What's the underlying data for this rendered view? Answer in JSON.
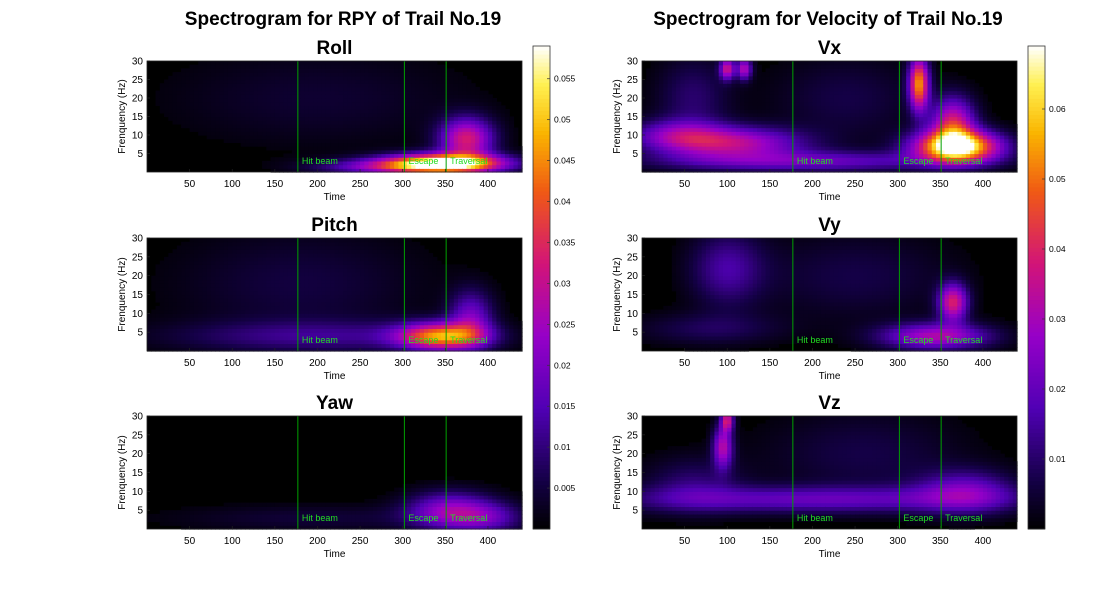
{
  "figure_titles": {
    "left": "Spectrogram for RPY of Trail No.19",
    "right": "Spectrogram for Velocity of Trail No.19"
  },
  "events": [
    {
      "label": "Hit beam",
      "time": 177
    },
    {
      "label": "Escape",
      "time": 302
    },
    {
      "label": "Traversal",
      "time": 351
    }
  ],
  "colors": {
    "colormap": "hot-purple (black-purple-magenta-orange-yellow-white)",
    "event_line": "#00a000",
    "event_label": "#22dd22"
  },
  "chart_data": [
    {
      "type": "heatmap",
      "title": "Roll",
      "xlabel": "Time",
      "ylabel": "Frenquency (Hz)",
      "xlim": [
        0,
        440
      ],
      "ylim": [
        0,
        30
      ],
      "xticks": [
        50,
        100,
        150,
        200,
        250,
        300,
        350,
        400
      ],
      "yticks": [
        5,
        10,
        15,
        20,
        25,
        30
      ],
      "colorbar_group": 0,
      "hotspots": [
        {
          "t": 350,
          "f": 2.5,
          "st": 48,
          "sf": 1.8,
          "a": 1.0
        },
        {
          "t": 375,
          "f": 9,
          "st": 22,
          "sf": 4,
          "a": 0.55
        },
        {
          "t": 290,
          "f": 1.5,
          "st": 60,
          "sf": 1.5,
          "a": 0.35
        },
        {
          "t": 200,
          "f": 20,
          "st": 120,
          "sf": 9,
          "a": 0.07
        }
      ]
    },
    {
      "type": "heatmap",
      "title": "Pitch",
      "xlabel": "Time",
      "ylabel": "Frenquency (Hz)",
      "xlim": [
        0,
        440
      ],
      "ylim": [
        0,
        30
      ],
      "xticks": [
        50,
        100,
        150,
        200,
        250,
        300,
        350,
        400
      ],
      "yticks": [
        5,
        10,
        15,
        20,
        25,
        30
      ],
      "colorbar_group": 0,
      "hotspots": [
        {
          "t": 345,
          "f": 4,
          "st": 35,
          "sf": 2.5,
          "a": 0.72
        },
        {
          "t": 380,
          "f": 9,
          "st": 18,
          "sf": 5,
          "a": 0.32
        },
        {
          "t": 200,
          "f": 4,
          "st": 120,
          "sf": 3,
          "a": 0.18
        },
        {
          "t": 180,
          "f": 18,
          "st": 100,
          "sf": 10,
          "a": 0.09
        }
      ]
    },
    {
      "type": "heatmap",
      "title": "Yaw",
      "xlabel": "Time",
      "ylabel": "Frenquency (Hz)",
      "xlim": [
        0,
        440
      ],
      "ylim": [
        0,
        30
      ],
      "xticks": [
        50,
        100,
        150,
        200,
        250,
        300,
        350,
        400
      ],
      "yticks": [
        5,
        10,
        15,
        20,
        25,
        30
      ],
      "colorbar_group": 0,
      "hotspots": [
        {
          "t": 355,
          "f": 5,
          "st": 35,
          "sf": 3.5,
          "a": 0.38
        },
        {
          "t": 400,
          "f": 3,
          "st": 30,
          "sf": 3,
          "a": 0.22
        },
        {
          "t": 200,
          "f": 3,
          "st": 120,
          "sf": 2.5,
          "a": 0.08
        }
      ]
    },
    {
      "type": "heatmap",
      "title": "Vx",
      "xlabel": "Time",
      "ylabel": "Frenquency (Hz)",
      "xlim": [
        0,
        440
      ],
      "ylim": [
        0,
        30
      ],
      "xticks": [
        50,
        100,
        150,
        200,
        250,
        300,
        350,
        400
      ],
      "yticks": [
        5,
        10,
        15,
        20,
        25,
        30
      ],
      "colorbar_group": 1,
      "hotspots": [
        {
          "t": 370,
          "f": 7,
          "st": 35,
          "sf": 3,
          "a": 1.0
        },
        {
          "t": 365,
          "f": 13,
          "st": 18,
          "sf": 5,
          "a": 0.55
        },
        {
          "t": 325,
          "f": 24,
          "st": 8,
          "sf": 5,
          "a": 0.75
        },
        {
          "t": 110,
          "f": 8,
          "st": 55,
          "sf": 3,
          "a": 0.45
        },
        {
          "t": 40,
          "f": 10,
          "st": 40,
          "sf": 3,
          "a": 0.3
        },
        {
          "t": 190,
          "f": 3,
          "st": 120,
          "sf": 2,
          "a": 0.3
        },
        {
          "t": 100,
          "f": 28,
          "st": 6,
          "sf": 2,
          "a": 0.5
        },
        {
          "t": 120,
          "f": 28,
          "st": 6,
          "sf": 2,
          "a": 0.45
        },
        {
          "t": 60,
          "f": 20,
          "st": 30,
          "sf": 8,
          "a": 0.15
        },
        {
          "t": 240,
          "f": 20,
          "st": 60,
          "sf": 8,
          "a": 0.1
        }
      ]
    },
    {
      "type": "heatmap",
      "title": "Vy",
      "xlabel": "Time",
      "ylabel": "Frenquency (Hz)",
      "xlim": [
        0,
        440
      ],
      "ylim": [
        0,
        30
      ],
      "xticks": [
        50,
        100,
        150,
        200,
        250,
        300,
        350,
        400
      ],
      "yticks": [
        5,
        10,
        15,
        20,
        25,
        30
      ],
      "colorbar_group": 1,
      "hotspots": [
        {
          "t": 365,
          "f": 13,
          "st": 12,
          "sf": 3.5,
          "a": 0.55
        },
        {
          "t": 345,
          "f": 4,
          "st": 45,
          "sf": 2.5,
          "a": 0.45
        },
        {
          "t": 100,
          "f": 22,
          "st": 30,
          "sf": 7,
          "a": 0.22
        },
        {
          "t": 250,
          "f": 20,
          "st": 80,
          "sf": 8,
          "a": 0.1
        },
        {
          "t": 80,
          "f": 6,
          "st": 60,
          "sf": 3,
          "a": 0.12
        }
      ]
    },
    {
      "type": "heatmap",
      "title": "Vz",
      "xlabel": "Time",
      "ylabel": "Frenquency (Hz)",
      "xlim": [
        0,
        440
      ],
      "ylim": [
        0,
        30
      ],
      "xticks": [
        50,
        100,
        150,
        200,
        250,
        300,
        350,
        400
      ],
      "yticks": [
        5,
        10,
        15,
        20,
        25,
        30
      ],
      "colorbar_group": 1,
      "hotspots": [
        {
          "t": 95,
          "f": 22,
          "st": 8,
          "sf": 4,
          "a": 0.45
        },
        {
          "t": 100,
          "f": 29,
          "st": 5,
          "sf": 2,
          "a": 0.5
        },
        {
          "t": 200,
          "f": 8,
          "st": 160,
          "sf": 2.5,
          "a": 0.28
        },
        {
          "t": 380,
          "f": 10,
          "st": 40,
          "sf": 4,
          "a": 0.3
        },
        {
          "t": 60,
          "f": 12,
          "st": 40,
          "sf": 5,
          "a": 0.15
        },
        {
          "t": 260,
          "f": 20,
          "st": 80,
          "sf": 8,
          "a": 0.1
        }
      ]
    }
  ],
  "colorbars": [
    {
      "ticks": [
        0.005,
        0.01,
        0.015,
        0.02,
        0.025,
        0.03,
        0.035,
        0.04,
        0.045,
        0.05,
        0.055
      ],
      "max": 0.059
    },
    {
      "ticks": [
        0.01,
        0.02,
        0.03,
        0.04,
        0.05,
        0.06
      ],
      "max": 0.069
    }
  ]
}
